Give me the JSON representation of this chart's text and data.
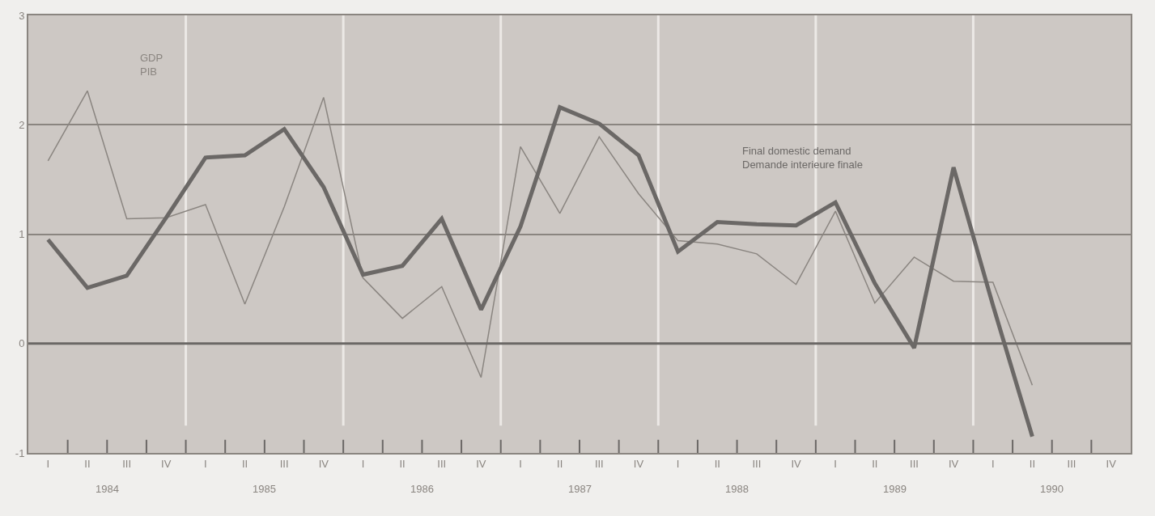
{
  "chart_data": {
    "type": "line",
    "categories": [
      "I",
      "II",
      "III",
      "IV",
      "I",
      "II",
      "III",
      "IV",
      "I",
      "II",
      "III",
      "IV",
      "I",
      "II",
      "III",
      "IV",
      "I",
      "II",
      "III",
      "IV",
      "I",
      "II",
      "III",
      "IV",
      "I",
      "II",
      "III",
      "IV"
    ],
    "annotations": [
      "1984",
      "1985",
      "1986",
      "1987",
      "1988",
      "1989",
      "1990"
    ],
    "series": [
      {
        "name": "GDP\nPIB",
        "color": "#8a8580",
        "values": [
          1.67,
          2.31,
          1.14,
          1.15,
          1.27,
          0.36,
          1.25,
          2.25,
          0.6,
          0.23,
          0.52,
          -0.31,
          1.8,
          1.19,
          1.89,
          1.37,
          0.94,
          0.91,
          0.82,
          0.54,
          1.21,
          0.37,
          0.79,
          0.57,
          0.56,
          -0.38,
          null,
          null
        ]
      },
      {
        "name": "Final domestic demand\nDemande interieure finale",
        "color": "#6b6866",
        "values": [
          0.95,
          0.51,
          0.62,
          1.15,
          1.7,
          1.72,
          1.96,
          1.43,
          0.63,
          0.71,
          1.14,
          0.31,
          1.07,
          2.16,
          2.01,
          1.72,
          0.84,
          1.11,
          1.09,
          1.08,
          1.29,
          0.55,
          -0.04,
          1.61,
          0.35,
          -0.85,
          null,
          null
        ]
      }
    ],
    "ylim": [
      -1,
      3
    ],
    "yticks": [
      -1,
      0,
      1,
      2,
      3
    ],
    "ref_lines": [
      {
        "axis": "y",
        "value": 0,
        "color": "#6b6866"
      }
    ],
    "grid": "y",
    "legend": false,
    "marker": "none",
    "line_style": "solid"
  }
}
